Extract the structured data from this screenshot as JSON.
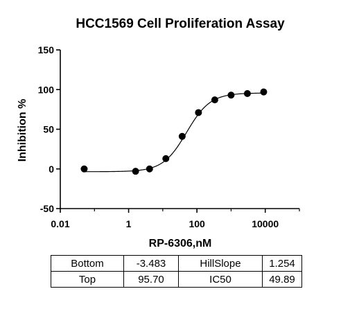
{
  "chart_data": {
    "type": "scatter",
    "title": "HCC1569 Cell Proliferation Assay",
    "xlabel": "RP-6306,nM",
    "ylabel": "Inhibition %",
    "xscale": "log",
    "xlim": [
      0.01,
      100000
    ],
    "ylim": [
      -50,
      150
    ],
    "xticks": [
      0.01,
      1,
      100,
      10000
    ],
    "xtick_labels": [
      "0.01",
      "1",
      "100",
      "10000"
    ],
    "yticks": [
      -50,
      0,
      50,
      100,
      150
    ],
    "ytick_labels": [
      "-50",
      "0",
      "50",
      "100",
      "150"
    ],
    "grid": false,
    "legend": "none",
    "series": [
      {
        "points": [
          {
            "x": 0.05,
            "y": 0
          },
          {
            "x": 1.6,
            "y": -3
          },
          {
            "x": 4.1,
            "y": 0
          },
          {
            "x": 12.3,
            "y": 13
          },
          {
            "x": 37,
            "y": 41
          },
          {
            "x": 111,
            "y": 71
          },
          {
            "x": 333,
            "y": 87
          },
          {
            "x": 1000,
            "y": 93
          },
          {
            "x": 3000,
            "y": 95
          },
          {
            "x": 9000,
            "y": 97
          }
        ],
        "marker_color": "#000000"
      }
    ],
    "fit": {
      "model": "four-parameter logistic",
      "bottom": -3.483,
      "top": 95.7,
      "hillslope": 1.254,
      "ic50": 49.89,
      "color": "#000000"
    },
    "table": {
      "rows": [
        [
          "Bottom",
          "-3.483",
          "HillSlope",
          "1.254"
        ],
        [
          "Top",
          "95.70",
          "IC50",
          "49.89"
        ]
      ]
    }
  }
}
